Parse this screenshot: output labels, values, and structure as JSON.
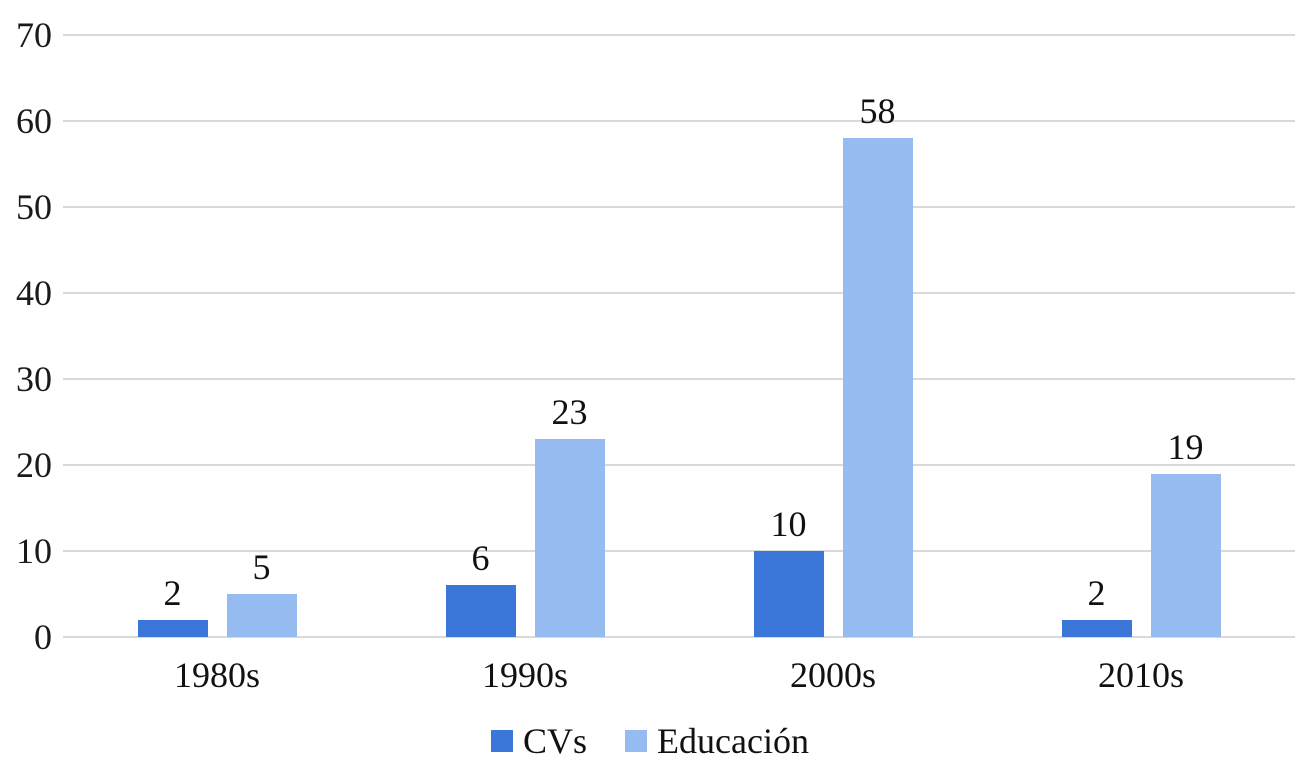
{
  "chart_data": {
    "type": "bar",
    "title": "",
    "categories": [
      "1980s",
      "1990s",
      "2000s",
      "2010s"
    ],
    "series": [
      {
        "name": "CVs",
        "color": "#3b76d9",
        "values": [
          2,
          6,
          10,
          2
        ]
      },
      {
        "name": "Educación",
        "color": "#95bbf0",
        "values": [
          5,
          23,
          58,
          19
        ]
      }
    ],
    "ylim": [
      0,
      70
    ],
    "yticks": [
      0,
      10,
      20,
      30,
      40,
      50,
      60,
      70
    ],
    "grid": true,
    "gridline_color": "#d9d9d9",
    "text_color": "#111111",
    "background_color": "#ffffff",
    "legend_position": "bottom",
    "data_labels": true
  }
}
